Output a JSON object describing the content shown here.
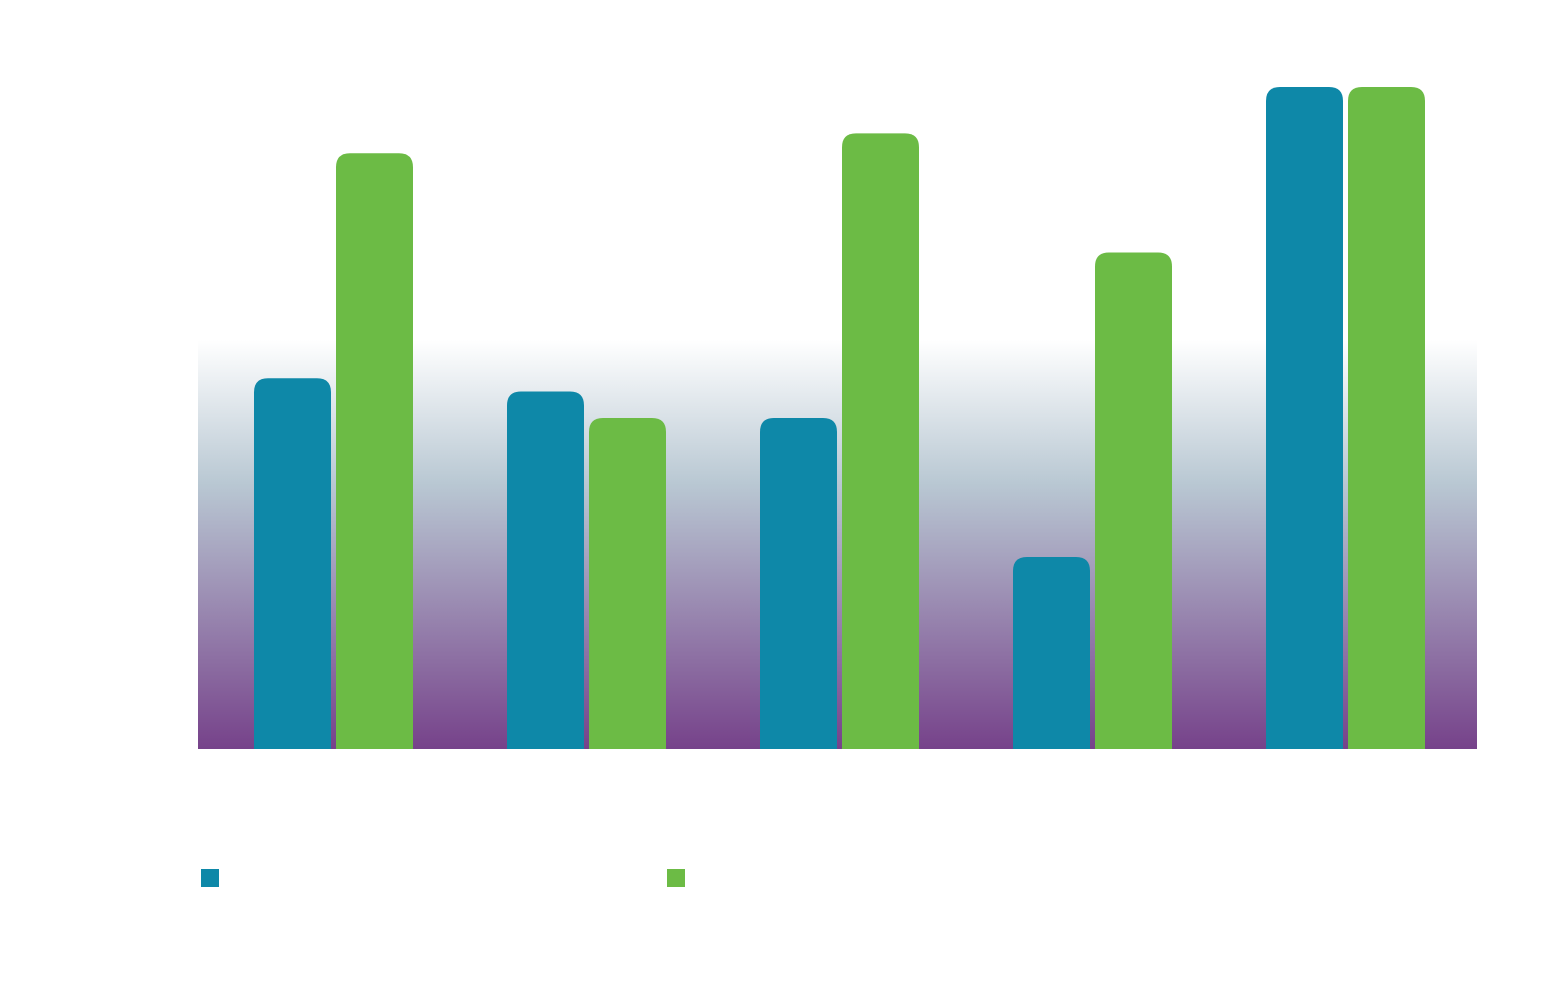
{
  "chart_data": {
    "type": "bar",
    "categories": [
      null,
      null,
      null,
      null,
      null
    ],
    "series": [
      {
        "color": "#0e88a8",
        "values": [
          56,
          54,
          50,
          29,
          100
        ]
      },
      {
        "color": "#6cbb45",
        "values": [
          90,
          50,
          93,
          75,
          100
        ]
      }
    ]
  }
}
